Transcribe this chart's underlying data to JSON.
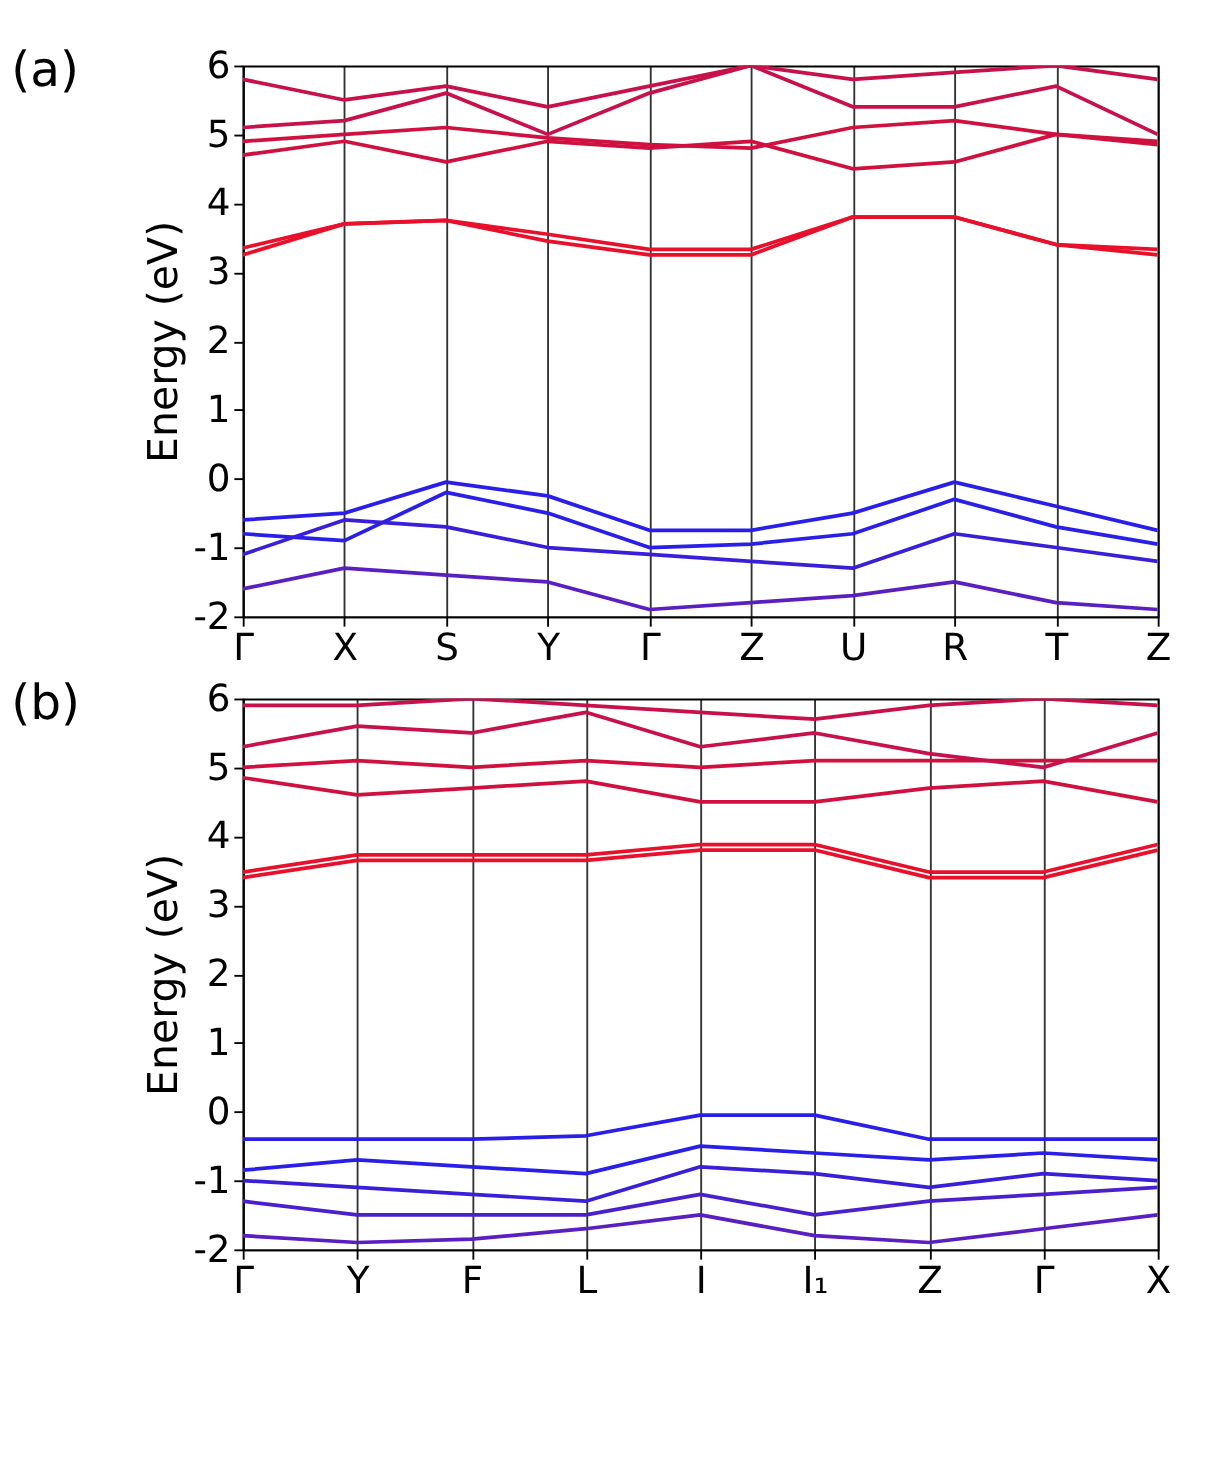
{
  "chart_data": [
    {
      "type": "line",
      "title": "(a)",
      "ylabel": "Energy (eV)",
      "ylim": [
        -2,
        6
      ],
      "yticks": [
        -2,
        -1,
        0,
        1,
        2,
        3,
        4,
        5,
        6
      ],
      "categories": [
        "Γ",
        "X",
        "S",
        "Y",
        "Γ",
        "Z",
        "U",
        "R",
        "T",
        "Z"
      ],
      "grid": "x",
      "legend": false,
      "line_style": "solid",
      "series": [
        {
          "color": "#e8102a",
          "values": [
            3.25,
            3.7,
            3.75,
            3.45,
            3.25,
            3.25,
            3.8,
            3.8,
            3.4,
            3.25
          ]
        },
        {
          "color": "#e8102a",
          "values": [
            3.35,
            3.7,
            3.75,
            3.55,
            3.33,
            3.33,
            3.8,
            3.8,
            3.4,
            3.33
          ]
        },
        {
          "color": "#d0103e",
          "values": [
            4.7,
            4.9,
            4.6,
            4.9,
            4.8,
            4.9,
            4.5,
            4.6,
            5.0,
            4.9
          ]
        },
        {
          "color": "#d0103e",
          "values": [
            4.9,
            5.0,
            5.1,
            4.95,
            4.85,
            4.8,
            5.1,
            5.2,
            5.0,
            4.85
          ]
        },
        {
          "color": "#c8104a",
          "values": [
            5.1,
            5.2,
            5.6,
            5.0,
            5.6,
            6.0,
            5.4,
            5.4,
            5.7,
            5.0
          ]
        },
        {
          "color": "#c8104a",
          "values": [
            5.8,
            5.5,
            5.7,
            5.4,
            5.7,
            6.0,
            5.8,
            5.9,
            6.0,
            5.8
          ]
        },
        {
          "color": "#2a1fe8",
          "values": [
            -0.6,
            -0.5,
            -0.05,
            -0.25,
            -0.75,
            -0.75,
            -0.5,
            -0.05,
            -0.4,
            -0.75
          ]
        },
        {
          "color": "#2a1fe8",
          "values": [
            -0.8,
            -0.9,
            -0.2,
            -0.5,
            -1.0,
            -0.95,
            -0.8,
            -0.3,
            -0.7,
            -0.95
          ]
        },
        {
          "color": "#3a1fd8",
          "values": [
            -1.1,
            -0.6,
            -0.7,
            -1.0,
            -1.1,
            -1.2,
            -1.3,
            -0.8,
            -1.0,
            -1.2
          ]
        },
        {
          "color": "#5a1fc0",
          "values": [
            -1.6,
            -1.3,
            -1.4,
            -1.5,
            -1.9,
            -1.8,
            -1.7,
            -1.5,
            -1.8,
            -1.9
          ]
        }
      ]
    },
    {
      "type": "line",
      "title": "(b)",
      "ylabel": "Energy (eV)",
      "ylim": [
        -2,
        6
      ],
      "yticks": [
        -2,
        -1,
        0,
        1,
        2,
        3,
        4,
        5,
        6
      ],
      "categories": [
        "Γ",
        "Y",
        "F",
        "L",
        "I",
        "I₁",
        "Z",
        "Γ",
        "X"
      ],
      "grid": "x",
      "legend": false,
      "line_style": "solid",
      "series": [
        {
          "color": "#e8102a",
          "values": [
            3.4,
            3.65,
            3.65,
            3.65,
            3.8,
            3.8,
            3.4,
            3.4,
            3.8
          ]
        },
        {
          "color": "#e8102a",
          "values": [
            3.48,
            3.73,
            3.73,
            3.73,
            3.88,
            3.88,
            3.48,
            3.48,
            3.88
          ]
        },
        {
          "color": "#d0103e",
          "values": [
            4.85,
            4.6,
            4.7,
            4.8,
            4.5,
            4.5,
            4.7,
            4.8,
            4.5
          ]
        },
        {
          "color": "#d0103e",
          "values": [
            5.0,
            5.1,
            5.0,
            5.1,
            5.0,
            5.1,
            5.1,
            5.1,
            5.1
          ]
        },
        {
          "color": "#c8104a",
          "values": [
            5.3,
            5.6,
            5.5,
            5.8,
            5.3,
            5.5,
            5.2,
            5.0,
            5.5
          ]
        },
        {
          "color": "#c8104a",
          "values": [
            5.9,
            5.9,
            6.0,
            5.9,
            5.8,
            5.7,
            5.9,
            6.0,
            5.9
          ]
        },
        {
          "color": "#2a1fe8",
          "values": [
            -0.4,
            -0.4,
            -0.4,
            -0.35,
            -0.05,
            -0.05,
            -0.4,
            -0.4,
            -0.4
          ]
        },
        {
          "color": "#2a1fe8",
          "values": [
            -0.85,
            -0.7,
            -0.8,
            -0.9,
            -0.5,
            -0.6,
            -0.7,
            -0.6,
            -0.7
          ]
        },
        {
          "color": "#3a1fd8",
          "values": [
            -1.0,
            -1.1,
            -1.2,
            -1.3,
            -0.8,
            -0.9,
            -1.1,
            -0.9,
            -1.0
          ]
        },
        {
          "color": "#4a1fcc",
          "values": [
            -1.3,
            -1.5,
            -1.5,
            -1.5,
            -1.2,
            -1.5,
            -1.3,
            -1.2,
            -1.1
          ]
        },
        {
          "color": "#5a1fc0",
          "values": [
            -1.8,
            -1.9,
            -1.85,
            -1.7,
            -1.5,
            -1.8,
            -1.9,
            -1.7,
            -1.5
          ]
        }
      ]
    }
  ]
}
